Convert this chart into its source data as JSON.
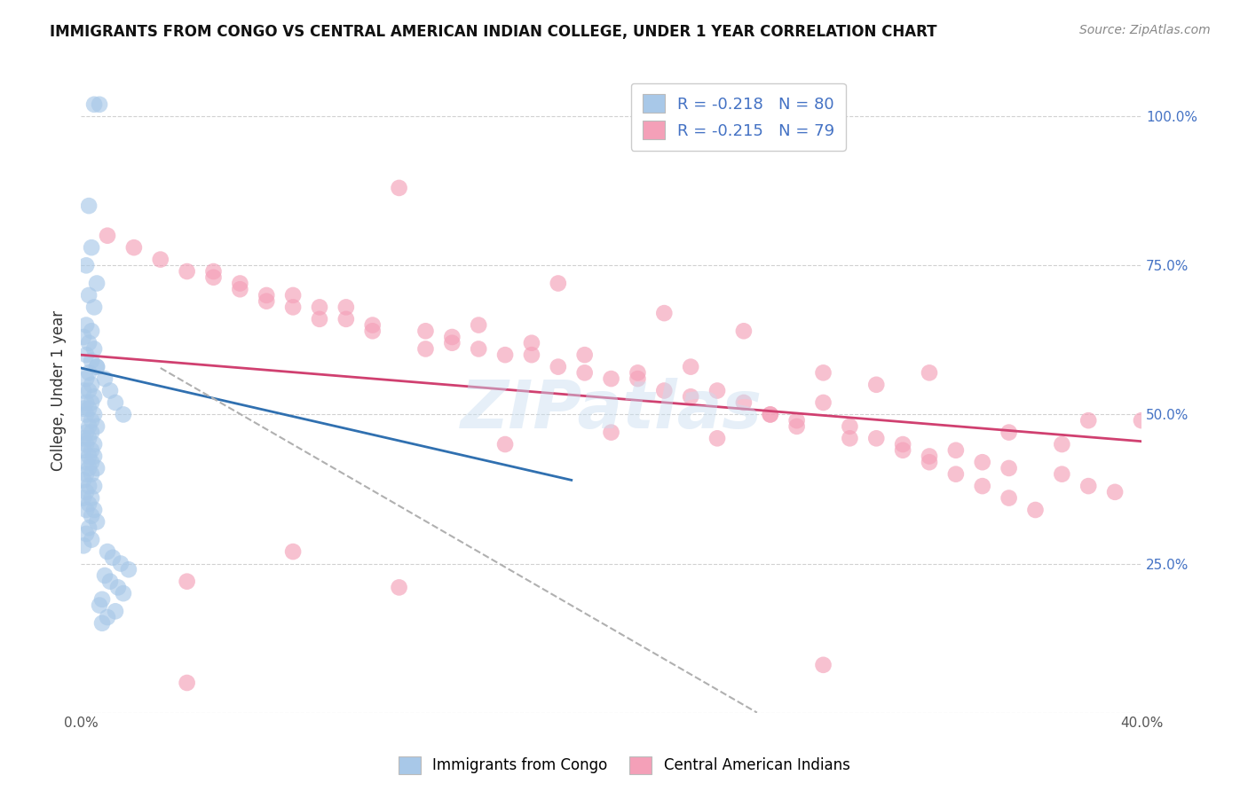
{
  "title": "IMMIGRANTS FROM CONGO VS CENTRAL AMERICAN INDIAN COLLEGE, UNDER 1 YEAR CORRELATION CHART",
  "source": "Source: ZipAtlas.com",
  "ylabel": "College, Under 1 year",
  "xlim": [
    0.0,
    0.4
  ],
  "ylim": [
    0.0,
    1.08
  ],
  "yticks": [
    0.0,
    0.25,
    0.5,
    0.75,
    1.0
  ],
  "ytick_labels_right": [
    "",
    "25.0%",
    "50.0%",
    "75.0%",
    "100.0%"
  ],
  "xticks": [
    0.0,
    0.05,
    0.1,
    0.15,
    0.2,
    0.25,
    0.3,
    0.35,
    0.4
  ],
  "xtick_labels": [
    "0.0%",
    "",
    "",
    "",
    "",
    "",
    "",
    "",
    "40.0%"
  ],
  "legend_R1": "-0.218",
  "legend_N1": "80",
  "legend_R2": "-0.215",
  "legend_N2": "79",
  "color_blue": "#a8c8e8",
  "color_pink": "#f4a0b8",
  "line_blue": "#3070b0",
  "line_pink": "#d04070",
  "line_dashed": "#b0b0b0",
  "watermark": "ZIPatlas",
  "blue_scatter_x": [
    0.005,
    0.007,
    0.003,
    0.004,
    0.002,
    0.006,
    0.003,
    0.005,
    0.002,
    0.004,
    0.001,
    0.003,
    0.005,
    0.002,
    0.004,
    0.006,
    0.003,
    0.002,
    0.004,
    0.001,
    0.003,
    0.005,
    0.002,
    0.004,
    0.001,
    0.003,
    0.005,
    0.002,
    0.004,
    0.006,
    0.003,
    0.002,
    0.004,
    0.001,
    0.003,
    0.005,
    0.002,
    0.004,
    0.001,
    0.003,
    0.005,
    0.002,
    0.004,
    0.006,
    0.003,
    0.002,
    0.004,
    0.001,
    0.003,
    0.005,
    0.002,
    0.004,
    0.001,
    0.003,
    0.005,
    0.002,
    0.004,
    0.006,
    0.003,
    0.002,
    0.004,
    0.001,
    0.01,
    0.012,
    0.015,
    0.018,
    0.009,
    0.011,
    0.014,
    0.016,
    0.008,
    0.007,
    0.013,
    0.01,
    0.008,
    0.006,
    0.009,
    0.011,
    0.013,
    0.016
  ],
  "blue_scatter_y": [
    1.02,
    1.02,
    0.85,
    0.78,
    0.75,
    0.72,
    0.7,
    0.68,
    0.65,
    0.64,
    0.63,
    0.62,
    0.61,
    0.6,
    0.59,
    0.58,
    0.57,
    0.56,
    0.55,
    0.54,
    0.54,
    0.53,
    0.52,
    0.52,
    0.51,
    0.51,
    0.5,
    0.5,
    0.49,
    0.48,
    0.48,
    0.47,
    0.47,
    0.46,
    0.46,
    0.45,
    0.45,
    0.44,
    0.44,
    0.43,
    0.43,
    0.42,
    0.42,
    0.41,
    0.41,
    0.4,
    0.4,
    0.39,
    0.38,
    0.38,
    0.37,
    0.36,
    0.36,
    0.35,
    0.34,
    0.34,
    0.33,
    0.32,
    0.31,
    0.3,
    0.29,
    0.28,
    0.27,
    0.26,
    0.25,
    0.24,
    0.23,
    0.22,
    0.21,
    0.2,
    0.19,
    0.18,
    0.17,
    0.16,
    0.15,
    0.58,
    0.56,
    0.54,
    0.52,
    0.5
  ],
  "pink_scatter_x": [
    0.12,
    0.22,
    0.18,
    0.25,
    0.3,
    0.38,
    0.08,
    0.19,
    0.23,
    0.1,
    0.15,
    0.17,
    0.2,
    0.28,
    0.14,
    0.16,
    0.21,
    0.09,
    0.13,
    0.11,
    0.24,
    0.26,
    0.07,
    0.27,
    0.06,
    0.29,
    0.05,
    0.31,
    0.32,
    0.33,
    0.34,
    0.35,
    0.36,
    0.04,
    0.08,
    0.35,
    0.37,
    0.28,
    0.32,
    0.4,
    0.03,
    0.07,
    0.11,
    0.15,
    0.19,
    0.23,
    0.27,
    0.31,
    0.35,
    0.39,
    0.02,
    0.06,
    0.1,
    0.14,
    0.18,
    0.22,
    0.26,
    0.3,
    0.34,
    0.38,
    0.01,
    0.05,
    0.09,
    0.13,
    0.17,
    0.21,
    0.25,
    0.29,
    0.33,
    0.37,
    0.04,
    0.08,
    0.12,
    0.16,
    0.2,
    0.24,
    0.28,
    0.32,
    0.04
  ],
  "pink_scatter_y": [
    0.88,
    0.67,
    0.72,
    0.64,
    0.55,
    0.49,
    0.7,
    0.6,
    0.58,
    0.68,
    0.65,
    0.62,
    0.56,
    0.52,
    0.63,
    0.6,
    0.57,
    0.66,
    0.61,
    0.64,
    0.54,
    0.5,
    0.69,
    0.48,
    0.71,
    0.46,
    0.73,
    0.44,
    0.42,
    0.4,
    0.38,
    0.36,
    0.34,
    0.74,
    0.68,
    0.47,
    0.45,
    0.57,
    0.57,
    0.49,
    0.76,
    0.7,
    0.65,
    0.61,
    0.57,
    0.53,
    0.49,
    0.45,
    0.41,
    0.37,
    0.78,
    0.72,
    0.66,
    0.62,
    0.58,
    0.54,
    0.5,
    0.46,
    0.42,
    0.38,
    0.8,
    0.74,
    0.68,
    0.64,
    0.6,
    0.56,
    0.52,
    0.48,
    0.44,
    0.4,
    0.22,
    0.27,
    0.21,
    0.45,
    0.47,
    0.46,
    0.08,
    0.43,
    0.05
  ],
  "blue_line_x": [
    0.0,
    0.185
  ],
  "blue_line_y": [
    0.578,
    0.39
  ],
  "pink_line_x": [
    0.0,
    0.4
  ],
  "pink_line_y": [
    0.6,
    0.455
  ],
  "dashed_line_x": [
    0.03,
    0.255
  ],
  "dashed_line_y": [
    0.578,
    0.0
  ]
}
